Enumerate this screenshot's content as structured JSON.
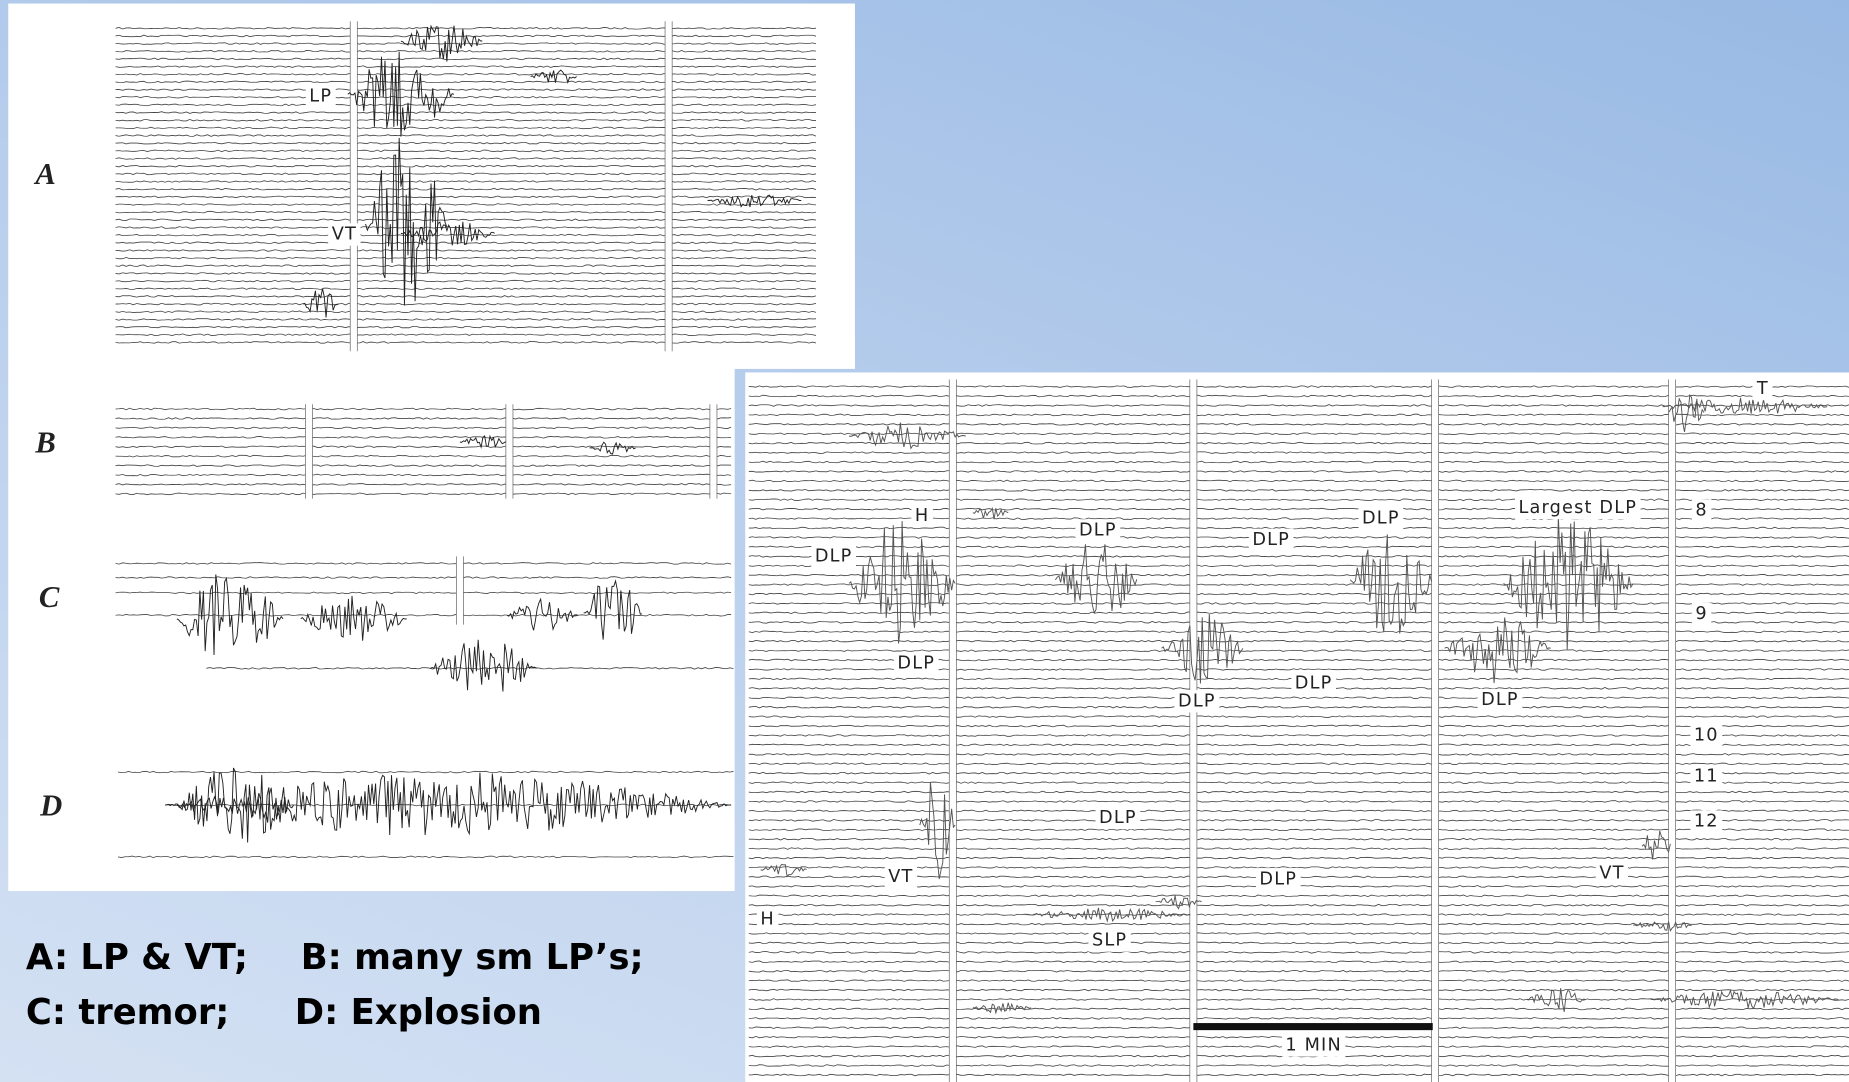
{
  "panels": {
    "A": {
      "label": "A",
      "annotations": [
        "LP",
        "VT"
      ]
    },
    "B": {
      "label": "B"
    },
    "C": {
      "label": "C"
    },
    "D": {
      "label": "D"
    }
  },
  "right_panel": {
    "annotations": [
      "T",
      "H",
      "DLP",
      "DLP",
      "Largest DLP",
      "8",
      "DLP",
      "DLP",
      "9",
      "DLP",
      "DLP",
      "DLP",
      "DLP",
      "10",
      "11",
      "12",
      "DLP",
      "VT",
      "DLP",
      "VT",
      "H",
      "SLP",
      "1 MIN"
    ]
  },
  "caption": {
    "line1": [
      "A: LP & VT;",
      "B: many sm LP’s;"
    ],
    "line2": [
      "C: tremor;",
      "D: Explosion"
    ]
  }
}
